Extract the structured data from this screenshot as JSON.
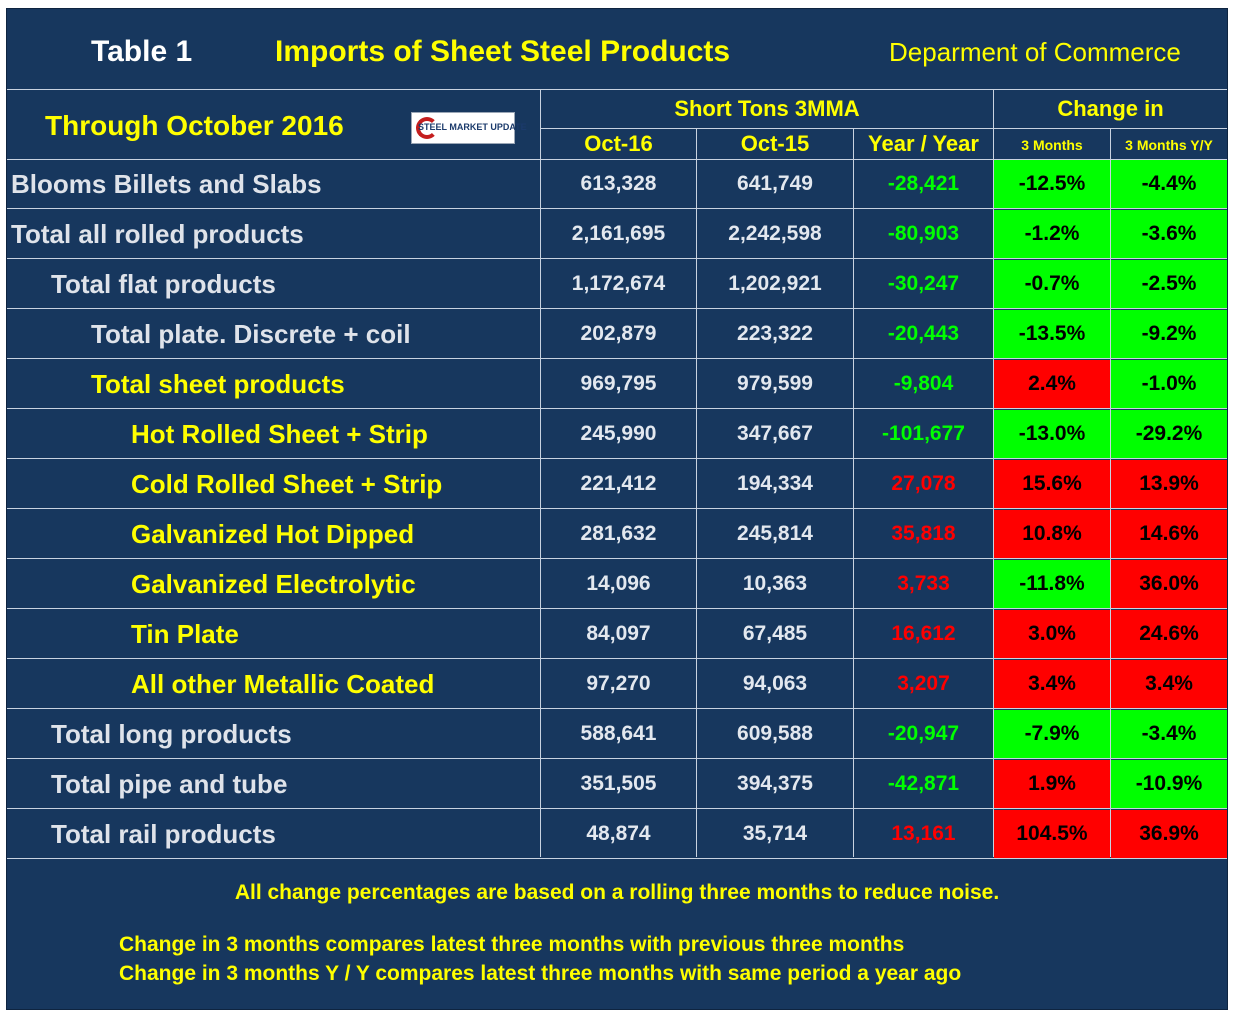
{
  "header": {
    "table_label": "Table 1",
    "title": "Imports of Sheet Steel Products",
    "source": "Deparment of Commerce"
  },
  "subheader": {
    "period": "Through October 2016",
    "logo_text": "STEEL MARKET UPDATE",
    "group_tons": "Short Tons 3MMA",
    "group_change": "Change in",
    "columns": [
      "Oct-16",
      "Oct-15",
      "Year / Year",
      "3 Months",
      "3 Months Y/Y"
    ]
  },
  "colors": {
    "background": "#17375e",
    "yellow_text": "#ffff00",
    "grey_text": "#dfe3ea",
    "positive_cell": "#00ff00",
    "negative_cell": "#ff0000",
    "decrease_value": "#00ff00",
    "increase_value": "#ff0000"
  },
  "rows": [
    {
      "name": "Blooms Billets and Slabs",
      "indent": 0,
      "name_color": "grey",
      "oct16": "613,328",
      "oct15": "641,749",
      "yy": "-28,421",
      "yy_dir": "down",
      "m3": "-12.5%",
      "m3_dir": "down",
      "m3yy": "-4.4%",
      "m3yy_dir": "down"
    },
    {
      "name": "Total all rolled products",
      "indent": 0,
      "name_color": "grey",
      "oct16": "2,161,695",
      "oct15": "2,242,598",
      "yy": "-80,903",
      "yy_dir": "down",
      "m3": "-1.2%",
      "m3_dir": "down",
      "m3yy": "-3.6%",
      "m3yy_dir": "down"
    },
    {
      "name": "Total flat products",
      "indent": 1,
      "name_color": "grey",
      "oct16": "1,172,674",
      "oct15": "1,202,921",
      "yy": "-30,247",
      "yy_dir": "down",
      "m3": "-0.7%",
      "m3_dir": "down",
      "m3yy": "-2.5%",
      "m3yy_dir": "down"
    },
    {
      "name": "Total plate. Discrete + coil",
      "indent": 2,
      "name_color": "grey",
      "oct16": "202,879",
      "oct15": "223,322",
      "yy": "-20,443",
      "yy_dir": "down",
      "m3": "-13.5%",
      "m3_dir": "down",
      "m3yy": "-9.2%",
      "m3yy_dir": "down"
    },
    {
      "name": "Total sheet products",
      "indent": 2,
      "name_color": "yellow",
      "oct16": "969,795",
      "oct15": "979,599",
      "yy": "-9,804",
      "yy_dir": "down",
      "m3": "2.4%",
      "m3_dir": "up",
      "m3yy": "-1.0%",
      "m3yy_dir": "down"
    },
    {
      "name": "Hot Rolled Sheet + Strip",
      "indent": 3,
      "name_color": "yellow",
      "oct16": "245,990",
      "oct15": "347,667",
      "yy": "-101,677",
      "yy_dir": "down",
      "m3": "-13.0%",
      "m3_dir": "down",
      "m3yy": "-29.2%",
      "m3yy_dir": "down"
    },
    {
      "name": "Cold Rolled Sheet + Strip",
      "indent": 3,
      "name_color": "yellow",
      "oct16": "221,412",
      "oct15": "194,334",
      "yy": "27,078",
      "yy_dir": "up",
      "m3": "15.6%",
      "m3_dir": "up",
      "m3yy": "13.9%",
      "m3yy_dir": "up"
    },
    {
      "name": "Galvanized Hot Dipped",
      "indent": 3,
      "name_color": "yellow",
      "oct16": "281,632",
      "oct15": "245,814",
      "yy": "35,818",
      "yy_dir": "up",
      "m3": "10.8%",
      "m3_dir": "up",
      "m3yy": "14.6%",
      "m3yy_dir": "up"
    },
    {
      "name": "Galvanized Electrolytic",
      "indent": 3,
      "name_color": "yellow",
      "oct16": "14,096",
      "oct15": "10,363",
      "yy": "3,733",
      "yy_dir": "up",
      "m3": "-11.8%",
      "m3_dir": "down",
      "m3yy": "36.0%",
      "m3yy_dir": "up"
    },
    {
      "name": "Tin Plate",
      "indent": 3,
      "name_color": "yellow",
      "oct16": "84,097",
      "oct15": "67,485",
      "yy": "16,612",
      "yy_dir": "up",
      "m3": "3.0%",
      "m3_dir": "up",
      "m3yy": "24.6%",
      "m3yy_dir": "up"
    },
    {
      "name": "All other Metallic Coated",
      "indent": 3,
      "name_color": "yellow",
      "oct16": "97,270",
      "oct15": "94,063",
      "yy": "3,207",
      "yy_dir": "up",
      "m3": "3.4%",
      "m3_dir": "up",
      "m3yy": "3.4%",
      "m3yy_dir": "up"
    },
    {
      "name": "Total long products",
      "indent": 1,
      "name_color": "grey",
      "oct16": "588,641",
      "oct15": "609,588",
      "yy": "-20,947",
      "yy_dir": "down",
      "m3": "-7.9%",
      "m3_dir": "down",
      "m3yy": "-3.4%",
      "m3yy_dir": "down"
    },
    {
      "name": "Total pipe and tube",
      "indent": 1,
      "name_color": "grey",
      "oct16": "351,505",
      "oct15": "394,375",
      "yy": "-42,871",
      "yy_dir": "down",
      "m3": "1.9%",
      "m3_dir": "up",
      "m3yy": "-10.9%",
      "m3yy_dir": "down"
    },
    {
      "name": "Total rail products",
      "indent": 1,
      "name_color": "grey",
      "oct16": "48,874",
      "oct15": "35,714",
      "yy": "13,161",
      "yy_dir": "up",
      "m3": "104.5%",
      "m3_dir": "up",
      "m3yy": "36.9%",
      "m3yy_dir": "up"
    }
  ],
  "footer": {
    "note1": "All change percentages are based on a rolling three months to reduce noise.",
    "note2": "Change in 3 months compares latest three months with previous three months",
    "note3": "Change in 3 months  Y / Y compares latest three months with same period a year ago"
  }
}
